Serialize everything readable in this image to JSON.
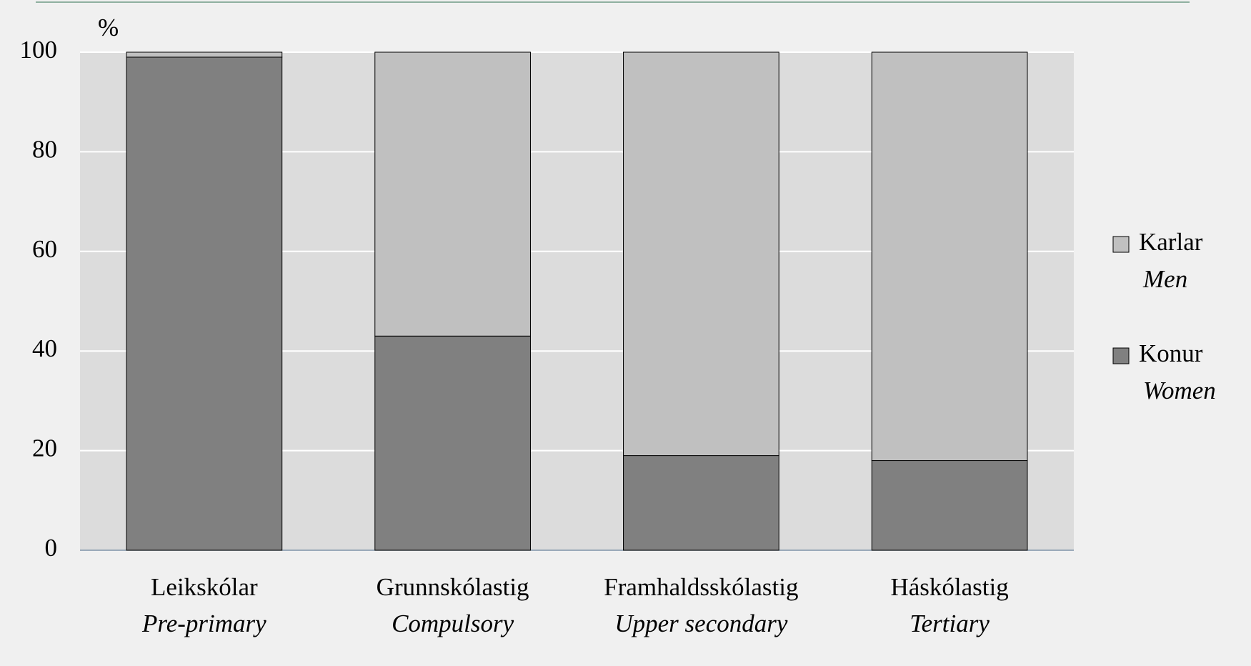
{
  "chart_data": {
    "type": "stacked_bar",
    "y_unit": "%",
    "categories": [
      "Leikskólar",
      "Grunnskólastig",
      "Framhaldsskólastig",
      "Háskólastig"
    ],
    "categories_en": [
      "Pre-primary",
      "Compulsory",
      "Upper secondary",
      "Tertiary"
    ],
    "series": [
      {
        "name": "Konur",
        "name_en": "Women",
        "color": "#808080",
        "values": [
          99,
          43,
          19,
          18
        ]
      },
      {
        "name": "Karlar",
        "name_en": "Men",
        "color": "#c0c0c0",
        "values": [
          1,
          57,
          81,
          82
        ]
      }
    ],
    "ylim": [
      0,
      100
    ],
    "yticks": [
      0,
      20,
      40,
      60,
      80,
      100
    ],
    "grid": true,
    "legend": "right"
  }
}
